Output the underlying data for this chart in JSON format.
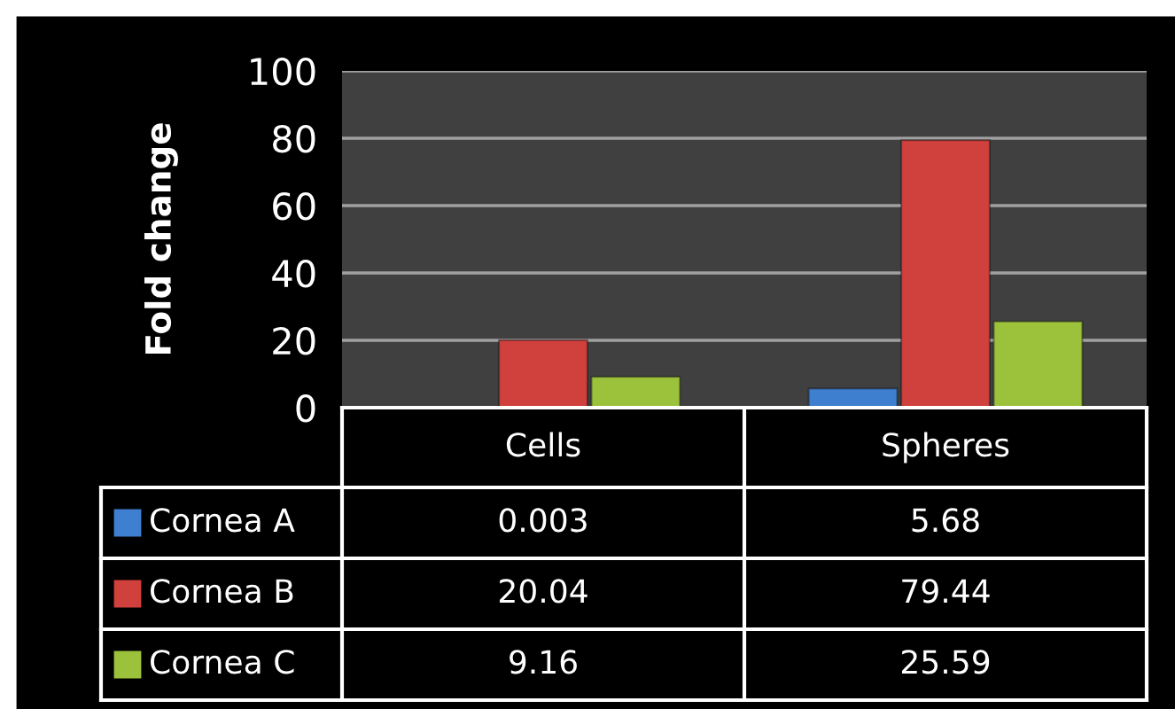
{
  "chart_data": {
    "type": "bar",
    "ylabel": "Fold change",
    "categories": [
      "Cells",
      "Spheres"
    ],
    "series": [
      {
        "name": "Cornea A",
        "color": "#3f7fcf",
        "values": [
          0.003,
          5.68
        ]
      },
      {
        "name": "Cornea B",
        "color": "#d0403c",
        "values": [
          20.04,
          79.44
        ]
      },
      {
        "name": "Cornea C",
        "color": "#9cc23c",
        "values": [
          9.16,
          25.59
        ]
      }
    ],
    "ylim": [
      0,
      100
    ],
    "yticks": [
      0,
      20,
      40,
      60,
      80,
      100
    ],
    "grid": "y",
    "data_labels": true,
    "legend": "bottom"
  }
}
